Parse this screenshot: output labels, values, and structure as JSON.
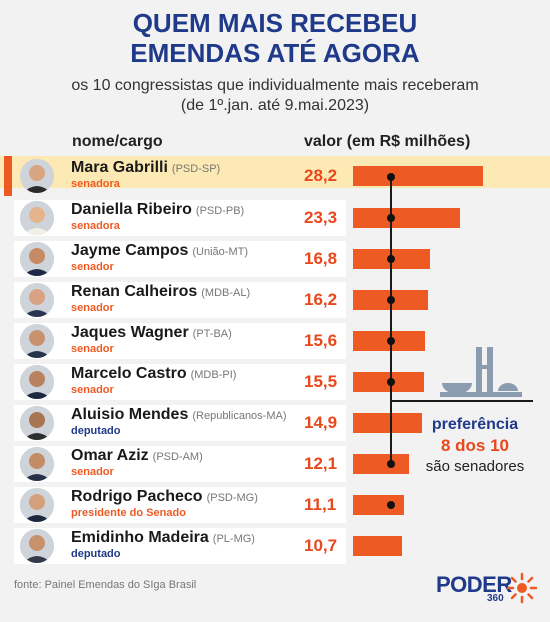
{
  "header": {
    "title_line1": "QUEM MAIS RECEBEU",
    "title_line2": "EMENDAS ATÉ AGORA",
    "subtitle_line1": "os 10 congressistas que individualmente mais receberam",
    "subtitle_line2": "(de 1º.jan. até 9.mai.2023)"
  },
  "columns": {
    "name_header": "nome/cargo",
    "value_header": "valor (em R$ milhões)"
  },
  "colors": {
    "title": "#1f3a8a",
    "accent": "#ee5a24",
    "highlight_bg": "#fde9b4",
    "senator_role": "#ee5a24",
    "deputy_role": "#1f3a8a"
  },
  "rows": [
    {
      "name": "Mara Gabrilli",
      "party": "(PSD-SP)",
      "role": "senadora",
      "value_label": "28,2",
      "value": 28.2,
      "role_type": "senate",
      "highlight": true
    },
    {
      "name": "Daniella Ribeiro",
      "party": "(PSD-PB)",
      "role": "senadora",
      "value_label": "23,3",
      "value": 23.3,
      "role_type": "senate",
      "highlight": false
    },
    {
      "name": "Jayme Campos",
      "party": "(União-MT)",
      "role": "senador",
      "value_label": "16,8",
      "value": 16.8,
      "role_type": "senate",
      "highlight": false
    },
    {
      "name": "Renan Calheiros",
      "party": "(MDB-AL)",
      "role": "senador",
      "value_label": "16,2",
      "value": 16.2,
      "role_type": "senate",
      "highlight": false
    },
    {
      "name": "Jaques Wagner",
      "party": "(PT-BA)",
      "role": "senador",
      "value_label": "15,6",
      "value": 15.6,
      "role_type": "senate",
      "highlight": false
    },
    {
      "name": "Marcelo Castro",
      "party": "(MDB-PI)",
      "role": "senador",
      "value_label": "15,5",
      "value": 15.5,
      "role_type": "senate",
      "highlight": false
    },
    {
      "name": "Aluisio Mendes",
      "party": "(Republicanos-MA)",
      "role": "deputado",
      "value_label": "14,9",
      "value": 14.9,
      "role_type": "house",
      "highlight": false
    },
    {
      "name": "Omar Aziz",
      "party": "(PSD-AM)",
      "role": "senador",
      "value_label": "12,1",
      "value": 12.1,
      "role_type": "senate",
      "highlight": false
    },
    {
      "name": "Rodrigo Pacheco",
      "party": "(PSD-MG)",
      "role": "presidente do Senado",
      "value_label": "11,1",
      "value": 11.1,
      "role_type": "senate",
      "highlight": false
    },
    {
      "name": "Emidinho Madeira",
      "party": "(PL-MG)",
      "role": "deputado",
      "value_label": "10,7",
      "value": 10.7,
      "role_type": "house",
      "highlight": false
    }
  ],
  "annotation": {
    "line1": "preferência",
    "line2": "8 dos 10",
    "line3": "são senadores"
  },
  "footer": {
    "source": "fonte: Painel Emendas do SIga Brasil",
    "logo": "PODER",
    "logo_sub": "360"
  },
  "chart_data": {
    "type": "bar",
    "orientation": "horizontal",
    "categories": [
      "Mara Gabrilli",
      "Daniella Ribeiro",
      "Jayme Campos",
      "Renan Calheiros",
      "Jaques Wagner",
      "Marcelo Castro",
      "Aluisio Mendes",
      "Omar Aziz",
      "Rodrigo Pacheco",
      "Emidinho Madeira"
    ],
    "values": [
      28.2,
      23.3,
      16.8,
      16.2,
      15.6,
      15.5,
      14.9,
      12.1,
      11.1,
      10.7
    ],
    "title": "QUEM MAIS RECEBEU EMENDAS ATÉ AGORA",
    "subtitle": "os 10 congressistas que individualmente mais receberam (de 1º.jan. até 9.mai.2023)",
    "xlabel": "valor (em R$ milhões)",
    "ylabel": "nome/cargo",
    "grid": false
  }
}
